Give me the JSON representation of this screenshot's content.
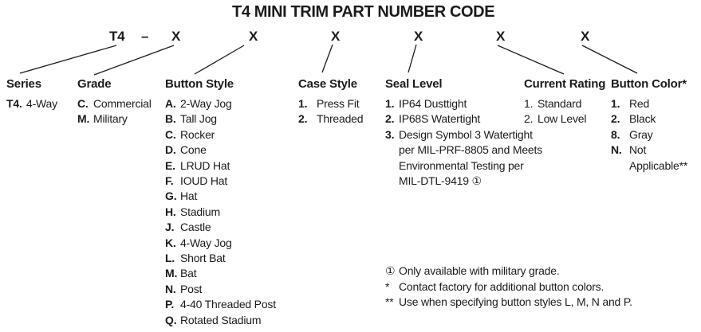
{
  "title": "T4 MINI TRIM PART NUMBER CODE",
  "code_row": {
    "prefix": "T4",
    "dash": "–",
    "placeholders": [
      "X",
      "X",
      "X",
      "X",
      "X",
      "X"
    ]
  },
  "columns": [
    {
      "id": "series",
      "header": "Series",
      "items": [
        {
          "code": "T4.",
          "label": "4-Way"
        }
      ]
    },
    {
      "id": "grade",
      "header": "Grade",
      "items": [
        {
          "code": "C.",
          "label": "Commercial"
        },
        {
          "code": "M.",
          "label": "Military"
        }
      ]
    },
    {
      "id": "button-style",
      "header": "Button Style",
      "items": [
        {
          "code": "A.",
          "label": "2-Way Jog"
        },
        {
          "code": "B.",
          "label": "Tall Jog"
        },
        {
          "code": "C.",
          "label": "Rocker"
        },
        {
          "code": "D.",
          "label": "Cone"
        },
        {
          "code": "E.",
          "label": "LRUD Hat"
        },
        {
          "code": "F.",
          "label": "IOUD Hat"
        },
        {
          "code": "G.",
          "label": "Hat"
        },
        {
          "code": "H.",
          "label": "Stadium"
        },
        {
          "code": "J.",
          "label": "Castle"
        },
        {
          "code": "K.",
          "label": "4-Way Jog"
        },
        {
          "code": "L.",
          "label": "Short Bat"
        },
        {
          "code": "M.",
          "label": "Bat"
        },
        {
          "code": "N.",
          "label": "Post"
        },
        {
          "code": "P.",
          "label": "4-40 Threaded Post"
        },
        {
          "code": "Q.",
          "label": "Rotated Stadium"
        }
      ]
    },
    {
      "id": "case-style",
      "header": "Case Style",
      "items": [
        {
          "code": "1.",
          "label": "Press Fit"
        },
        {
          "code": "2.",
          "label": "Threaded"
        }
      ]
    },
    {
      "id": "seal-level",
      "header": "Seal Level",
      "items": [
        {
          "code": "1.",
          "label": "IP64 Dusttight"
        },
        {
          "code": "2.",
          "label": "IP68S Watertight"
        },
        {
          "code": "3.",
          "label": "Design Symbol 3 Watertight\nper MIL-PRF-8805 and Meets\nEnvironmental Testing per\nMIL-DTL-9419 ①"
        }
      ]
    },
    {
      "id": "current-rating",
      "header": "Current Rating",
      "items": [
        {
          "code": "1.",
          "label": "Standard"
        },
        {
          "code": "2.",
          "label": "Low Level"
        }
      ]
    },
    {
      "id": "button-color",
      "header": "Button Color*",
      "items": [
        {
          "code": "1.",
          "label": "Red"
        },
        {
          "code": "2.",
          "label": "Black"
        },
        {
          "code": "8.",
          "label": "Gray"
        },
        {
          "code": "N.",
          "label": "Not Applicable**"
        }
      ]
    }
  ],
  "footnotes": [
    {
      "symbol": "①",
      "text": "Only available with military grade."
    },
    {
      "symbol": "*",
      "text": "Contact factory for additional button colors."
    },
    {
      "symbol": "**",
      "text": "Use when specifying button styles L, M, N and P."
    }
  ],
  "colors": {
    "text": "#1b1b1b",
    "background": "#ffffff"
  }
}
